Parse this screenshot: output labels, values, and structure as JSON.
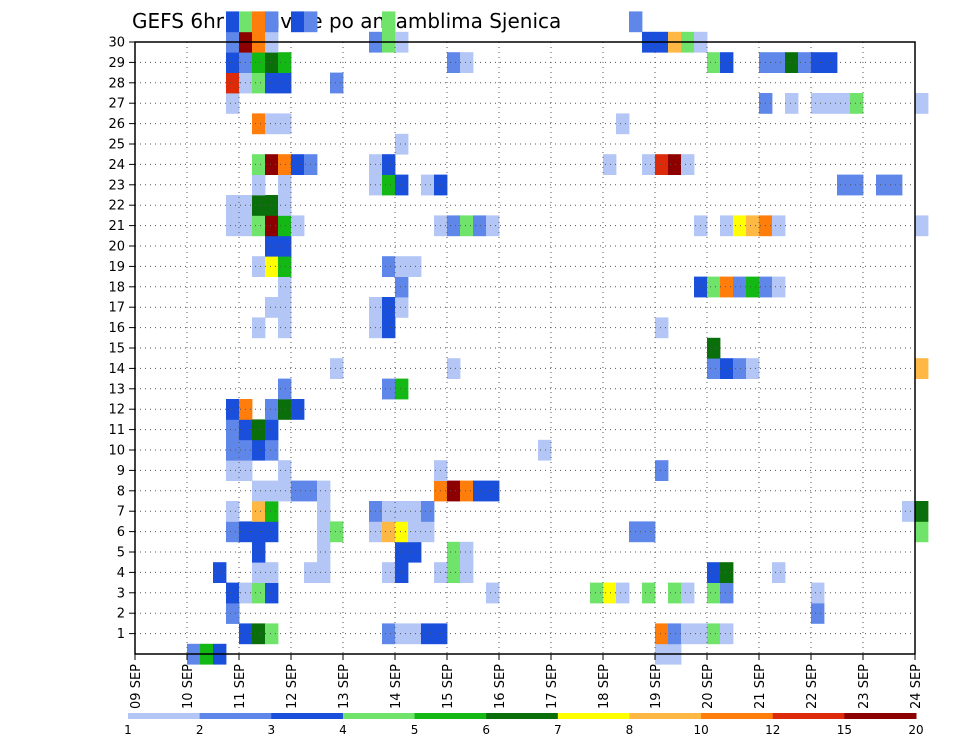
{
  "chart_data": {
    "type": "heatmap",
    "title": "GEFS 6hr padavine po ansamblima Sjenica",
    "x_tick_labels": [
      "09 SEP",
      "10 SEP",
      "11 SEP",
      "12 SEP",
      "13 SEP",
      "14 SEP",
      "15 SEP",
      "16 SEP",
      "17 SEP",
      "18 SEP",
      "19 SEP",
      "20 SEP",
      "21 SEP",
      "22 SEP",
      "23 SEP",
      "24 SEP"
    ],
    "y_tick_labels": [
      "1",
      "2",
      "3",
      "4",
      "5",
      "6",
      "7",
      "8",
      "9",
      "10",
      "11",
      "12",
      "13",
      "14",
      "15",
      "16",
      "17",
      "18",
      "19",
      "20",
      "21",
      "22",
      "23",
      "24",
      "25",
      "26",
      "27",
      "28",
      "29",
      "30"
    ],
    "x_range_days": [
      0,
      15
    ],
    "y_range": [
      0,
      30
    ],
    "grid": true,
    "colorbar": {
      "labels": [
        "1",
        "2",
        "3",
        "4",
        "5",
        "6",
        "7",
        "8",
        "10",
        "12",
        "15",
        "20"
      ],
      "colors": [
        "#b3c6f5",
        "#5f87ea",
        "#1a4fdc",
        "#6fe36a",
        "#14b814",
        "#0a6e0a",
        "#ffff00",
        "#ffb844",
        "#ff7d0a",
        "#dd2a0a",
        "#8c0000"
      ]
    },
    "cells_note": "x = days after 09 SEP 00Z (6-hour steps), m = ensemble member, c = colour class 0..10",
    "cells": [
      {
        "x": 1.0,
        "m": 0,
        "c": 1
      },
      {
        "x": 1.25,
        "m": 0,
        "c": 4
      },
      {
        "x": 1.5,
        "m": 0,
        "c": 2
      },
      {
        "x": 10.0,
        "m": 0,
        "c": 0
      },
      {
        "x": 10.25,
        "m": 0,
        "c": 0
      },
      {
        "x": 2.0,
        "m": 1,
        "c": 2
      },
      {
        "x": 2.25,
        "m": 1,
        "c": 5
      },
      {
        "x": 2.5,
        "m": 1,
        "c": 3
      },
      {
        "x": 4.75,
        "m": 1,
        "c": 1
      },
      {
        "x": 5.0,
        "m": 1,
        "c": 0
      },
      {
        "x": 5.25,
        "m": 1,
        "c": 0
      },
      {
        "x": 5.5,
        "m": 1,
        "c": 2
      },
      {
        "x": 5.75,
        "m": 1,
        "c": 2
      },
      {
        "x": 10.0,
        "m": 1,
        "c": 8
      },
      {
        "x": 10.25,
        "m": 1,
        "c": 1
      },
      {
        "x": 10.5,
        "m": 1,
        "c": 0
      },
      {
        "x": 10.75,
        "m": 1,
        "c": 0
      },
      {
        "x": 11.0,
        "m": 1,
        "c": 3
      },
      {
        "x": 11.25,
        "m": 1,
        "c": 0
      },
      {
        "x": 1.75,
        "m": 2,
        "c": 1
      },
      {
        "x": 1.75,
        "m": 2,
        "c": 1
      },
      {
        "x": 13.0,
        "m": 2,
        "c": 1
      },
      {
        "x": 1.75,
        "m": 3,
        "c": 2
      },
      {
        "x": 2.0,
        "m": 3,
        "c": 0
      },
      {
        "x": 2.25,
        "m": 3,
        "c": 3
      },
      {
        "x": 2.5,
        "m": 3,
        "c": 2
      },
      {
        "x": 6.75,
        "m": 3,
        "c": 0
      },
      {
        "x": 8.75,
        "m": 3,
        "c": 3
      },
      {
        "x": 9.0,
        "m": 3,
        "c": 6
      },
      {
        "x": 9.25,
        "m": 3,
        "c": 0
      },
      {
        "x": 10.25,
        "m": 3,
        "c": 3
      },
      {
        "x": 10.5,
        "m": 3,
        "c": 0
      },
      {
        "x": 11.0,
        "m": 3,
        "c": 3
      },
      {
        "x": 11.25,
        "m": 3,
        "c": 1
      },
      {
        "x": 13.0,
        "m": 3,
        "c": 0
      },
      {
        "x": 9.75,
        "m": 3,
        "c": 3
      },
      {
        "x": 1.5,
        "m": 4,
        "c": 2
      },
      {
        "x": 2.25,
        "m": 4,
        "c": 0
      },
      {
        "x": 2.5,
        "m": 4,
        "c": 0
      },
      {
        "x": 3.25,
        "m": 4,
        "c": 0
      },
      {
        "x": 3.5,
        "m": 4,
        "c": 0
      },
      {
        "x": 4.75,
        "m": 4,
        "c": 0
      },
      {
        "x": 5.0,
        "m": 4,
        "c": 2
      },
      {
        "x": 5.75,
        "m": 4,
        "c": 0
      },
      {
        "x": 6.0,
        "m": 4,
        "c": 3
      },
      {
        "x": 6.25,
        "m": 4,
        "c": 0
      },
      {
        "x": 11.0,
        "m": 4,
        "c": 2
      },
      {
        "x": 11.25,
        "m": 4,
        "c": 5
      },
      {
        "x": 12.25,
        "m": 4,
        "c": 0
      },
      {
        "x": 2.25,
        "m": 5,
        "c": 2
      },
      {
        "x": 3.5,
        "m": 5,
        "c": 0
      },
      {
        "x": 5.0,
        "m": 5,
        "c": 2
      },
      {
        "x": 5.25,
        "m": 5,
        "c": 2
      },
      {
        "x": 6.0,
        "m": 5,
        "c": 3
      },
      {
        "x": 6.25,
        "m": 5,
        "c": 0
      },
      {
        "x": 1.75,
        "m": 6,
        "c": 1
      },
      {
        "x": 2.0,
        "m": 6,
        "c": 2
      },
      {
        "x": 2.25,
        "m": 6,
        "c": 2
      },
      {
        "x": 2.5,
        "m": 6,
        "c": 2
      },
      {
        "x": 3.5,
        "m": 6,
        "c": 0
      },
      {
        "x": 3.75,
        "m": 6,
        "c": 3
      },
      {
        "x": 4.5,
        "m": 6,
        "c": 0
      },
      {
        "x": 4.75,
        "m": 6,
        "c": 7
      },
      {
        "x": 5.0,
        "m": 6,
        "c": 6
      },
      {
        "x": 5.25,
        "m": 6,
        "c": 0
      },
      {
        "x": 5.5,
        "m": 6,
        "c": 0
      },
      {
        "x": 9.5,
        "m": 6,
        "c": 1
      },
      {
        "x": 9.75,
        "m": 6,
        "c": 1
      },
      {
        "x": 15.0,
        "m": 6,
        "c": 3
      },
      {
        "x": 1.75,
        "m": 7,
        "c": 0
      },
      {
        "x": 2.25,
        "m": 7,
        "c": 7
      },
      {
        "x": 2.5,
        "m": 7,
        "c": 4
      },
      {
        "x": 3.5,
        "m": 7,
        "c": 0
      },
      {
        "x": 4.5,
        "m": 7,
        "c": 1
      },
      {
        "x": 4.75,
        "m": 7,
        "c": 0
      },
      {
        "x": 5.0,
        "m": 7,
        "c": 0
      },
      {
        "x": 5.25,
        "m": 7,
        "c": 0
      },
      {
        "x": 5.5,
        "m": 7,
        "c": 1
      },
      {
        "x": 14.75,
        "m": 7,
        "c": 0
      },
      {
        "x": 15.0,
        "m": 7,
        "c": 5
      },
      {
        "x": 2.25,
        "m": 8,
        "c": 0
      },
      {
        "x": 2.5,
        "m": 8,
        "c": 0
      },
      {
        "x": 2.75,
        "m": 8,
        "c": 0
      },
      {
        "x": 3.0,
        "m": 8,
        "c": 1
      },
      {
        "x": 3.25,
        "m": 8,
        "c": 1
      },
      {
        "x": 3.5,
        "m": 8,
        "c": 0
      },
      {
        "x": 5.75,
        "m": 8,
        "c": 8
      },
      {
        "x": 6.0,
        "m": 8,
        "c": 10
      },
      {
        "x": 6.25,
        "m": 8,
        "c": 8
      },
      {
        "x": 6.5,
        "m": 8,
        "c": 2
      },
      {
        "x": 6.75,
        "m": 8,
        "c": 2
      },
      {
        "x": 1.75,
        "m": 9,
        "c": 0
      },
      {
        "x": 2.0,
        "m": 9,
        "c": 0
      },
      {
        "x": 2.75,
        "m": 9,
        "c": 0
      },
      {
        "x": 5.75,
        "m": 9,
        "c": 0
      },
      {
        "x": 10.0,
        "m": 9,
        "c": 1
      },
      {
        "x": 1.75,
        "m": 10,
        "c": 1
      },
      {
        "x": 2.0,
        "m": 10,
        "c": 1
      },
      {
        "x": 2.25,
        "m": 10,
        "c": 2
      },
      {
        "x": 2.5,
        "m": 10,
        "c": 1
      },
      {
        "x": 7.75,
        "m": 10,
        "c": 0
      },
      {
        "x": 1.75,
        "m": 11,
        "c": 1
      },
      {
        "x": 2.0,
        "m": 11,
        "c": 2
      },
      {
        "x": 2.25,
        "m": 11,
        "c": 5
      },
      {
        "x": 2.5,
        "m": 11,
        "c": 2
      },
      {
        "x": 1.75,
        "m": 12,
        "c": 2
      },
      {
        "x": 2.0,
        "m": 12,
        "c": 8
      },
      {
        "x": 2.5,
        "m": 12,
        "c": 1
      },
      {
        "x": 2.75,
        "m": 12,
        "c": 5
      },
      {
        "x": 3.0,
        "m": 12,
        "c": 2
      },
      {
        "x": 2.75,
        "m": 13,
        "c": 1
      },
      {
        "x": 4.75,
        "m": 13,
        "c": 1
      },
      {
        "x": 5.0,
        "m": 13,
        "c": 4
      },
      {
        "x": 3.75,
        "m": 14,
        "c": 0
      },
      {
        "x": 6.0,
        "m": 14,
        "c": 0
      },
      {
        "x": 11.0,
        "m": 14,
        "c": 1
      },
      {
        "x": 11.25,
        "m": 14,
        "c": 2
      },
      {
        "x": 11.5,
        "m": 14,
        "c": 1
      },
      {
        "x": 11.75,
        "m": 14,
        "c": 0
      },
      {
        "x": 15.0,
        "m": 14,
        "c": 7
      },
      {
        "x": 11.0,
        "m": 15,
        "c": 5
      },
      {
        "x": 2.25,
        "m": 16,
        "c": 0
      },
      {
        "x": 2.75,
        "m": 16,
        "c": 0
      },
      {
        "x": 4.5,
        "m": 16,
        "c": 0
      },
      {
        "x": 4.75,
        "m": 16,
        "c": 2
      },
      {
        "x": 10.0,
        "m": 16,
        "c": 0
      },
      {
        "x": 2.5,
        "m": 17,
        "c": 0
      },
      {
        "x": 2.75,
        "m": 17,
        "c": 0
      },
      {
        "x": 4.5,
        "m": 17,
        "c": 0
      },
      {
        "x": 4.75,
        "m": 17,
        "c": 2
      },
      {
        "x": 5.0,
        "m": 17,
        "c": 0
      },
      {
        "x": 2.75,
        "m": 18,
        "c": 0
      },
      {
        "x": 5.0,
        "m": 18,
        "c": 1
      },
      {
        "x": 10.75,
        "m": 18,
        "c": 2
      },
      {
        "x": 11.0,
        "m": 18,
        "c": 3
      },
      {
        "x": 11.25,
        "m": 18,
        "c": 8
      },
      {
        "x": 11.5,
        "m": 18,
        "c": 1
      },
      {
        "x": 11.75,
        "m": 18,
        "c": 4
      },
      {
        "x": 12.0,
        "m": 18,
        "c": 1
      },
      {
        "x": 12.25,
        "m": 18,
        "c": 0
      },
      {
        "x": 2.25,
        "m": 19,
        "c": 0
      },
      {
        "x": 2.5,
        "m": 19,
        "c": 6
      },
      {
        "x": 2.75,
        "m": 19,
        "c": 4
      },
      {
        "x": 4.75,
        "m": 19,
        "c": 1
      },
      {
        "x": 5.0,
        "m": 19,
        "c": 0
      },
      {
        "x": 5.25,
        "m": 19,
        "c": 0
      },
      {
        "x": 2.5,
        "m": 20,
        "c": 2
      },
      {
        "x": 2.75,
        "m": 20,
        "c": 2
      },
      {
        "x": 1.75,
        "m": 21,
        "c": 0
      },
      {
        "x": 2.0,
        "m": 21,
        "c": 0
      },
      {
        "x": 2.25,
        "m": 21,
        "c": 3
      },
      {
        "x": 2.5,
        "m": 21,
        "c": 10
      },
      {
        "x": 2.75,
        "m": 21,
        "c": 4
      },
      {
        "x": 3.0,
        "m": 21,
        "c": 0
      },
      {
        "x": 5.75,
        "m": 21,
        "c": 0
      },
      {
        "x": 6.0,
        "m": 21,
        "c": 1
      },
      {
        "x": 6.25,
        "m": 21,
        "c": 3
      },
      {
        "x": 6.5,
        "m": 21,
        "c": 1
      },
      {
        "x": 6.75,
        "m": 21,
        "c": 0
      },
      {
        "x": 10.75,
        "m": 21,
        "c": 0
      },
      {
        "x": 11.25,
        "m": 21,
        "c": 0
      },
      {
        "x": 11.5,
        "m": 21,
        "c": 6
      },
      {
        "x": 11.75,
        "m": 21,
        "c": 7
      },
      {
        "x": 12.0,
        "m": 21,
        "c": 8
      },
      {
        "x": 12.25,
        "m": 21,
        "c": 0
      },
      {
        "x": 15.0,
        "m": 21,
        "c": 0
      },
      {
        "x": 1.75,
        "m": 22,
        "c": 0
      },
      {
        "x": 2.0,
        "m": 22,
        "c": 0
      },
      {
        "x": 2.25,
        "m": 22,
        "c": 5
      },
      {
        "x": 2.5,
        "m": 22,
        "c": 5
      },
      {
        "x": 2.75,
        "m": 22,
        "c": 0
      },
      {
        "x": 2.25,
        "m": 23,
        "c": 0
      },
      {
        "x": 2.75,
        "m": 23,
        "c": 0
      },
      {
        "x": 4.5,
        "m": 23,
        "c": 0
      },
      {
        "x": 4.75,
        "m": 23,
        "c": 4
      },
      {
        "x": 5.0,
        "m": 23,
        "c": 2
      },
      {
        "x": 5.5,
        "m": 23,
        "c": 0
      },
      {
        "x": 5.75,
        "m": 23,
        "c": 2
      },
      {
        "x": 13.5,
        "m": 23,
        "c": 1
      },
      {
        "x": 13.75,
        "m": 23,
        "c": 1
      },
      {
        "x": 14.25,
        "m": 23,
        "c": 1
      },
      {
        "x": 14.5,
        "m": 23,
        "c": 1
      },
      {
        "x": 2.25,
        "m": 24,
        "c": 3
      },
      {
        "x": 2.5,
        "m": 24,
        "c": 10
      },
      {
        "x": 2.75,
        "m": 24,
        "c": 8
      },
      {
        "x": 3.0,
        "m": 24,
        "c": 2
      },
      {
        "x": 3.25,
        "m": 24,
        "c": 1
      },
      {
        "x": 4.5,
        "m": 24,
        "c": 0
      },
      {
        "x": 4.75,
        "m": 24,
        "c": 2
      },
      {
        "x": 9.0,
        "m": 24,
        "c": 0
      },
      {
        "x": 9.75,
        "m": 24,
        "c": 0
      },
      {
        "x": 10.0,
        "m": 24,
        "c": 9
      },
      {
        "x": 10.25,
        "m": 24,
        "c": 10
      },
      {
        "x": 10.5,
        "m": 24,
        "c": 0
      },
      {
        "x": 5.0,
        "m": 25,
        "c": 0
      },
      {
        "x": 2.25,
        "m": 26,
        "c": 8
      },
      {
        "x": 2.5,
        "m": 26,
        "c": 0
      },
      {
        "x": 2.75,
        "m": 26,
        "c": 0
      },
      {
        "x": 9.25,
        "m": 26,
        "c": 0
      },
      {
        "x": 1.75,
        "m": 27,
        "c": 0
      },
      {
        "x": 12.0,
        "m": 27,
        "c": 1
      },
      {
        "x": 12.5,
        "m": 27,
        "c": 0
      },
      {
        "x": 13.0,
        "m": 27,
        "c": 0
      },
      {
        "x": 13.25,
        "m": 27,
        "c": 0
      },
      {
        "x": 13.5,
        "m": 27,
        "c": 0
      },
      {
        "x": 13.75,
        "m": 27,
        "c": 3
      },
      {
        "x": 15.0,
        "m": 27,
        "c": 0
      },
      {
        "x": 1.75,
        "m": 28,
        "c": 9
      },
      {
        "x": 2.0,
        "m": 28,
        "c": 0
      },
      {
        "x": 2.25,
        "m": 28,
        "c": 3
      },
      {
        "x": 2.5,
        "m": 28,
        "c": 2
      },
      {
        "x": 2.75,
        "m": 28,
        "c": 2
      },
      {
        "x": 3.75,
        "m": 28,
        "c": 1
      },
      {
        "x": 1.75,
        "m": 29,
        "c": 2
      },
      {
        "x": 2.0,
        "m": 29,
        "c": 1
      },
      {
        "x": 2.25,
        "m": 29,
        "c": 4
      },
      {
        "x": 2.5,
        "m": 29,
        "c": 5
      },
      {
        "x": 2.75,
        "m": 29,
        "c": 4
      },
      {
        "x": 6.0,
        "m": 29,
        "c": 1
      },
      {
        "x": 6.25,
        "m": 29,
        "c": 0
      },
      {
        "x": 11.0,
        "m": 29,
        "c": 3
      },
      {
        "x": 11.25,
        "m": 29,
        "c": 2
      },
      {
        "x": 12.0,
        "m": 29,
        "c": 1
      },
      {
        "x": 12.25,
        "m": 29,
        "c": 1
      },
      {
        "x": 12.5,
        "m": 29,
        "c": 5
      },
      {
        "x": 12.75,
        "m": 29,
        "c": 1
      },
      {
        "x": 13.0,
        "m": 29,
        "c": 2
      },
      {
        "x": 13.25,
        "m": 29,
        "c": 2
      },
      {
        "x": 1.75,
        "m": 30,
        "c": 1
      },
      {
        "x": 2.0,
        "m": 30,
        "c": 10
      },
      {
        "x": 2.25,
        "m": 30,
        "c": 8
      },
      {
        "x": 2.5,
        "m": 30,
        "c": 0
      },
      {
        "x": 4.5,
        "m": 30,
        "c": 1
      },
      {
        "x": 4.75,
        "m": 30,
        "c": 3
      },
      {
        "x": 5.0,
        "m": 30,
        "c": 0
      },
      {
        "x": 9.75,
        "m": 30,
        "c": 2
      },
      {
        "x": 10.0,
        "m": 30,
        "c": 2
      },
      {
        "x": 10.25,
        "m": 30,
        "c": 7
      },
      {
        "x": 10.5,
        "m": 30,
        "c": 3
      },
      {
        "x": 10.75,
        "m": 30,
        "c": 0
      },
      {
        "x": 1.75,
        "m": 31,
        "c": 2
      },
      {
        "x": 2.0,
        "m": 31,
        "c": 3
      },
      {
        "x": 2.25,
        "m": 31,
        "c": 8
      },
      {
        "x": 2.5,
        "m": 31,
        "c": 1
      },
      {
        "x": 3.0,
        "m": 31,
        "c": 2
      },
      {
        "x": 3.25,
        "m": 31,
        "c": 1
      },
      {
        "x": 4.75,
        "m": 31,
        "c": 3
      },
      {
        "x": 9.5,
        "m": 31,
        "c": 1
      }
    ]
  }
}
